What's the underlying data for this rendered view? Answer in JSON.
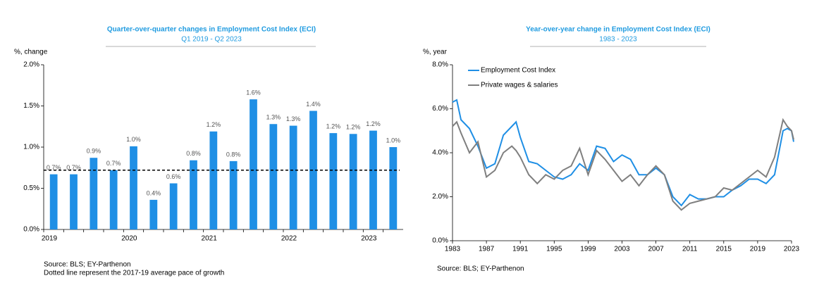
{
  "chart_data": [
    {
      "type": "bar",
      "title": "Quarter-over-quarter changes in Employment Cost Index (ECI)",
      "subtitle": "Q1 2019 - Q2 2023",
      "y_label": "%, change",
      "categories": [
        "2019",
        null,
        null,
        null,
        "2020",
        null,
        null,
        null,
        "2021",
        null,
        null,
        null,
        "2022",
        null,
        null,
        null,
        "2023",
        null
      ],
      "values": [
        0.67,
        0.67,
        0.87,
        0.72,
        1.01,
        0.36,
        0.56,
        0.84,
        1.19,
        0.83,
        1.58,
        1.28,
        1.26,
        1.44,
        1.17,
        1.16,
        1.2,
        1.0
      ],
      "value_labels": [
        "0.7%",
        "0.7%",
        "0.9%",
        "0.7%",
        "1.0%",
        "0.4%",
        "0.6%",
        "0.8%",
        "1.2%",
        "0.8%",
        "1.6%",
        "1.3%",
        "1.3%",
        "1.4%",
        "1.2%",
        "1.2%",
        "1.2%",
        "1.0%"
      ],
      "color": "#1f8fe5",
      "average_line": 0.72,
      "ylim": [
        0,
        2
      ],
      "yticks": [
        {
          "value": 0,
          "label": "0.0%"
        },
        {
          "value": 0.5,
          "label": "0.5%"
        },
        {
          "value": 1,
          "label": "1.0%"
        },
        {
          "value": 1.5,
          "label": "1.5%"
        },
        {
          "value": 2,
          "label": "2.0%"
        }
      ],
      "notes": [
        "Source: BLS; EY-Parthenon",
        "Dotted line represent the 2017-19 average pace of growth"
      ]
    },
    {
      "type": "line",
      "title": "Year-over-year change in Employment Cost Index (ECI)",
      "subtitle": "1983 - 2023",
      "y_label": "%, year",
      "x": [
        1983,
        1983.5,
        1984,
        1985,
        1986,
        1987,
        1988,
        1989,
        1990,
        1990.5,
        1991,
        1992,
        1993,
        1994,
        1995,
        1996,
        1997,
        1998,
        1999,
        2000,
        2001,
        2002,
        2003,
        2004,
        2005,
        2006,
        2007,
        2008,
        2009,
        2010,
        2011,
        2012,
        2013,
        2014,
        2015,
        2016,
        2017,
        2018,
        2019,
        2020,
        2021,
        2022,
        2022.5,
        2023,
        2023.25
      ],
      "series": [
        {
          "name": "Employment Cost Index",
          "color": "#1f8fe5",
          "values": [
            6.3,
            6.4,
            5.5,
            5.1,
            4.3,
            3.3,
            3.5,
            4.8,
            5.2,
            5.4,
            4.7,
            3.6,
            3.5,
            3.2,
            2.9,
            2.8,
            3.0,
            3.5,
            3.2,
            4.3,
            4.2,
            3.6,
            3.9,
            3.7,
            3.0,
            3.0,
            3.3,
            3.0,
            2.0,
            1.6,
            2.1,
            1.9,
            1.9,
            2.0,
            2.0,
            2.3,
            2.5,
            2.8,
            2.8,
            2.6,
            3.0,
            5.0,
            5.1,
            5.0,
            4.5
          ]
        },
        {
          "name": "Private wages & salaries",
          "color": "#7f7f7f",
          "values": [
            5.2,
            5.4,
            4.9,
            4.0,
            4.5,
            2.9,
            3.2,
            4.0,
            4.3,
            4.1,
            3.8,
            3.0,
            2.6,
            3.0,
            2.8,
            3.2,
            3.4,
            4.2,
            3.0,
            4.1,
            3.7,
            3.2,
            2.7,
            3.0,
            2.5,
            3.0,
            3.4,
            3.0,
            1.8,
            1.4,
            1.7,
            1.8,
            1.9,
            2.0,
            2.4,
            2.3,
            2.6,
            2.9,
            3.2,
            2.9,
            3.8,
            5.5,
            5.2,
            5.0,
            4.6
          ]
        }
      ],
      "xlim": [
        1983,
        2023
      ],
      "xticks": [
        1983,
        1987,
        1991,
        1995,
        1999,
        2003,
        2007,
        2011,
        2015,
        2019,
        2023
      ],
      "ylim": [
        0,
        8
      ],
      "yticks": [
        {
          "value": 0,
          "label": "0.0%"
        },
        {
          "value": 2,
          "label": "2.0%"
        },
        {
          "value": 4,
          "label": "4.0%"
        },
        {
          "value": 6,
          "label": "6.0%"
        },
        {
          "value": 8,
          "label": "8.0%"
        }
      ],
      "legend": "top-left",
      "notes": [
        "Source: BLS; EY-Parthenon"
      ]
    }
  ]
}
